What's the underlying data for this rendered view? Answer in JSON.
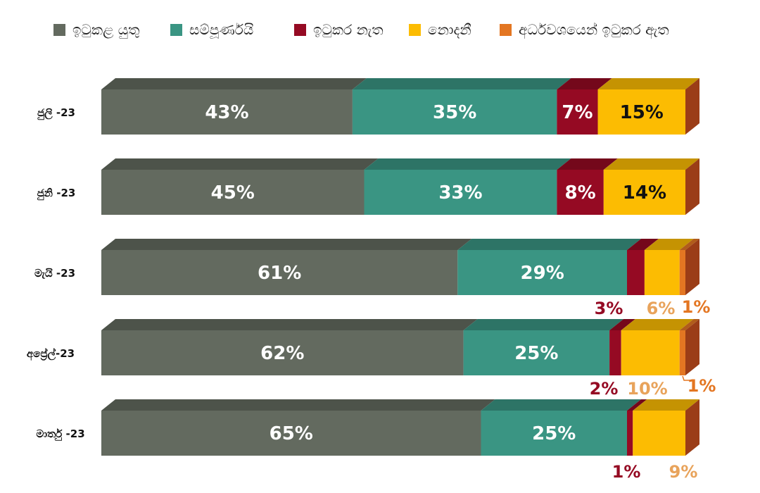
{
  "chart_data": {
    "type": "bar",
    "orientation": "horizontal",
    "stacked": true,
    "percent_stacked": true,
    "categories": [
      "ජුලි -23",
      "ජුනි -23",
      "මැයි -23",
      "අප්‍රේල්-23",
      "මාර්තු -23"
    ],
    "series": [
      {
        "name": "ඉටුකළ යුතු",
        "color": "#636a5f",
        "values": [
          43,
          45,
          61,
          62,
          65
        ],
        "labels": [
          "43%",
          "45%",
          "61%",
          "62%",
          "65%"
        ]
      },
      {
        "name": "සම්පූර්ණයි",
        "color": "#3a9583",
        "values": [
          35,
          33,
          29,
          25,
          25
        ],
        "labels": [
          "35%",
          "33%",
          "29%",
          "25%",
          "25%"
        ]
      },
      {
        "name": "ඉටුකර නැත",
        "color": "#950a23",
        "values": [
          7,
          8,
          3,
          2,
          1
        ],
        "labels": [
          "7%",
          "8%",
          "3%",
          "2%",
          "1%"
        ]
      },
      {
        "name": "නොදනී",
        "color": "#fcbc02",
        "values": [
          15,
          14,
          6,
          10,
          9
        ],
        "labels": [
          "15%",
          "14%",
          "6%",
          "10%",
          "9%"
        ]
      },
      {
        "name": "අර්ධවශයෙන් ඉටුකර ඇත",
        "color": "#e37622",
        "values": [
          0,
          0,
          1,
          1,
          0
        ],
        "labels": [
          "",
          "",
          "1%",
          "1%",
          ""
        ]
      }
    ],
    "legend_position": "top",
    "grid": false,
    "xlim": [
      0,
      100
    ]
  }
}
